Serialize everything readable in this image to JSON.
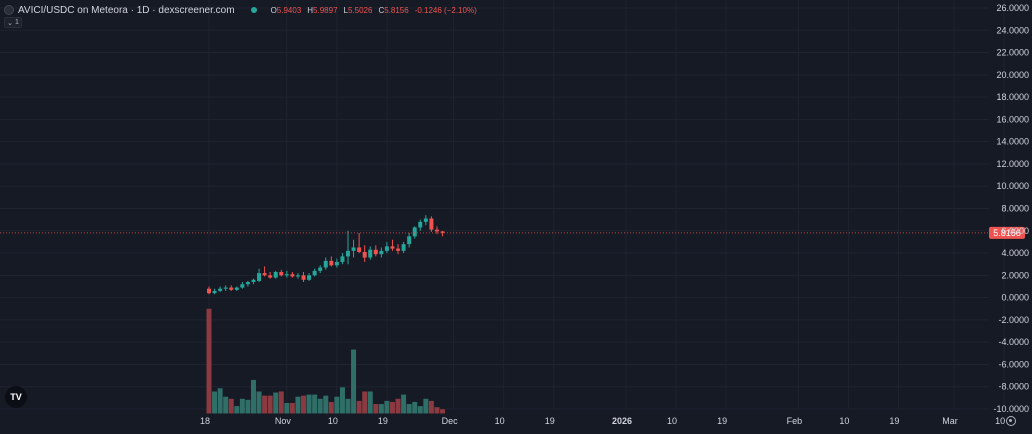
{
  "header": {
    "title": "AVICI/USDC on Meteora · 1D · dexscreener.com",
    "ohlc": [
      {
        "key": "O",
        "value": "5.9403"
      },
      {
        "key": "H",
        "value": "5.9897"
      },
      {
        "key": "L",
        "value": "5.5026"
      },
      {
        "key": "C",
        "value": "5.8156"
      },
      {
        "key": "",
        "value": "-0.1246 (−2.10%)"
      }
    ],
    "collapse_count": "1"
  },
  "icons": {
    "symbol": "token-icon",
    "status": "status-dot-icon",
    "collapse": "chevron-down-icon",
    "logo": "tradingview-logo-icon",
    "settings": "gear-icon"
  },
  "colors": {
    "background": "#161a25",
    "grid": "#1f232e",
    "up": "#26a69a",
    "down": "#ef5350",
    "volume_up": "#2f6f67",
    "volume_down": "#8a3a40",
    "axis_text": "#d1d4dc",
    "last_price_label": "#ef5350"
  },
  "chart_data": {
    "type": "candlestick",
    "interval": "1D",
    "y_axis": {
      "min": -10,
      "max": 26,
      "ticks": [
        26,
        24,
        22,
        20,
        18,
        16,
        14,
        12,
        10,
        8,
        6,
        4,
        2,
        0,
        -2,
        -4,
        -6,
        -8,
        -10
      ],
      "tick_labels": [
        "26.0000",
        "24.0000",
        "22.0000",
        "20.0000",
        "18.0000",
        "16.0000",
        "14.0000",
        "12.0000",
        "10.0000",
        "8.0000",
        "6.0000",
        "4.0000",
        "2.0000",
        "0.0000",
        "-2.0000",
        "-4.0000",
        "-6.0000",
        "-8.0000",
        "-10.0000"
      ]
    },
    "x_axis": {
      "start_date": "2025-10-18",
      "end_date": "2026-03-12",
      "ticks": [
        {
          "date": "2025-10-18",
          "label": "18",
          "bold": false
        },
        {
          "date": "2025-11-01",
          "label": "Nov",
          "bold": false
        },
        {
          "date": "2025-11-10",
          "label": "10",
          "bold": false
        },
        {
          "date": "2025-11-19",
          "label": "19",
          "bold": false
        },
        {
          "date": "2025-12-01",
          "label": "Dec",
          "bold": false
        },
        {
          "date": "2025-12-10",
          "label": "10",
          "bold": false
        },
        {
          "date": "2025-12-19",
          "label": "19",
          "bold": false
        },
        {
          "date": "2026-01-01",
          "label": "2026",
          "bold": true
        },
        {
          "date": "2026-01-10",
          "label": "10",
          "bold": false
        },
        {
          "date": "2026-01-19",
          "label": "19",
          "bold": false
        },
        {
          "date": "2026-02-01",
          "label": "Feb",
          "bold": false
        },
        {
          "date": "2026-02-10",
          "label": "10",
          "bold": false
        },
        {
          "date": "2026-02-19",
          "label": "19",
          "bold": false
        },
        {
          "date": "2026-03-01",
          "label": "Mar",
          "bold": false
        },
        {
          "date": "2026-03-10",
          "label": "10",
          "bold": false
        }
      ]
    },
    "last_price": {
      "value": 5.8156,
      "label": "5.8156"
    },
    "grid": true,
    "candles": [
      {
        "date": "2025-10-18",
        "o": 0.8,
        "h": 1.0,
        "l": 0.3,
        "c": 0.4
      },
      {
        "date": "2025-10-19",
        "o": 0.4,
        "h": 0.8,
        "l": 0.3,
        "c": 0.6
      },
      {
        "date": "2025-10-20",
        "o": 0.6,
        "h": 1.0,
        "l": 0.5,
        "c": 0.8
      },
      {
        "date": "2025-10-21",
        "o": 0.8,
        "h": 1.1,
        "l": 0.6,
        "c": 0.9
      },
      {
        "date": "2025-10-22",
        "o": 0.9,
        "h": 1.1,
        "l": 0.6,
        "c": 0.7
      },
      {
        "date": "2025-10-23",
        "o": 0.7,
        "h": 1.0,
        "l": 0.6,
        "c": 0.9
      },
      {
        "date": "2025-10-24",
        "o": 0.9,
        "h": 1.4,
        "l": 0.8,
        "c": 1.2
      },
      {
        "date": "2025-10-25",
        "o": 1.2,
        "h": 1.5,
        "l": 1.0,
        "c": 1.4
      },
      {
        "date": "2025-10-26",
        "o": 1.4,
        "h": 1.7,
        "l": 1.2,
        "c": 1.6
      },
      {
        "date": "2025-10-27",
        "o": 1.5,
        "h": 2.6,
        "l": 1.4,
        "c": 2.2
      },
      {
        "date": "2025-10-28",
        "o": 2.2,
        "h": 2.8,
        "l": 1.9,
        "c": 2.0
      },
      {
        "date": "2025-10-29",
        "o": 2.0,
        "h": 2.3,
        "l": 1.7,
        "c": 1.8
      },
      {
        "date": "2025-10-30",
        "o": 1.8,
        "h": 2.4,
        "l": 1.7,
        "c": 2.3
      },
      {
        "date": "2025-10-31",
        "o": 2.3,
        "h": 2.5,
        "l": 1.9,
        "c": 2.0
      },
      {
        "date": "2025-11-01",
        "o": 2.0,
        "h": 2.4,
        "l": 1.8,
        "c": 2.1
      },
      {
        "date": "2025-11-02",
        "o": 2.1,
        "h": 2.3,
        "l": 1.8,
        "c": 1.9
      },
      {
        "date": "2025-11-03",
        "o": 1.9,
        "h": 2.2,
        "l": 1.7,
        "c": 2.0
      },
      {
        "date": "2025-11-04",
        "o": 2.0,
        "h": 2.3,
        "l": 1.4,
        "c": 1.6
      },
      {
        "date": "2025-11-05",
        "o": 1.6,
        "h": 2.2,
        "l": 1.5,
        "c": 2.0
      },
      {
        "date": "2025-11-06",
        "o": 2.0,
        "h": 2.6,
        "l": 1.9,
        "c": 2.4
      },
      {
        "date": "2025-11-07",
        "o": 2.4,
        "h": 2.9,
        "l": 2.2,
        "c": 2.7
      },
      {
        "date": "2025-11-08",
        "o": 2.7,
        "h": 3.6,
        "l": 2.5,
        "c": 3.3
      },
      {
        "date": "2025-11-09",
        "o": 3.3,
        "h": 3.7,
        "l": 2.8,
        "c": 2.9
      },
      {
        "date": "2025-11-10",
        "o": 2.9,
        "h": 3.5,
        "l": 2.7,
        "c": 3.2
      },
      {
        "date": "2025-11-11",
        "o": 3.2,
        "h": 4.0,
        "l": 3.0,
        "c": 3.7
      },
      {
        "date": "2025-11-12",
        "o": 3.7,
        "h": 6.0,
        "l": 3.0,
        "c": 4.2
      },
      {
        "date": "2025-11-13",
        "o": 4.2,
        "h": 5.2,
        "l": 3.6,
        "c": 4.5
      },
      {
        "date": "2025-11-14",
        "o": 4.5,
        "h": 5.8,
        "l": 4.0,
        "c": 4.1
      },
      {
        "date": "2025-11-15",
        "o": 4.1,
        "h": 4.7,
        "l": 3.2,
        "c": 3.6
      },
      {
        "date": "2025-11-16",
        "o": 3.6,
        "h": 4.6,
        "l": 3.4,
        "c": 4.3
      },
      {
        "date": "2025-11-17",
        "o": 4.3,
        "h": 4.7,
        "l": 3.7,
        "c": 3.9
      },
      {
        "date": "2025-11-18",
        "o": 3.9,
        "h": 4.5,
        "l": 3.6,
        "c": 4.2
      },
      {
        "date": "2025-11-19",
        "o": 4.2,
        "h": 5.0,
        "l": 4.0,
        "c": 4.6
      },
      {
        "date": "2025-11-20",
        "o": 4.6,
        "h": 5.2,
        "l": 4.2,
        "c": 4.4
      },
      {
        "date": "2025-11-21",
        "o": 4.4,
        "h": 4.8,
        "l": 3.9,
        "c": 4.2
      },
      {
        "date": "2025-11-22",
        "o": 4.2,
        "h": 5.0,
        "l": 4.0,
        "c": 4.8
      },
      {
        "date": "2025-11-23",
        "o": 4.8,
        "h": 5.8,
        "l": 4.5,
        "c": 5.5
      },
      {
        "date": "2025-11-24",
        "o": 5.5,
        "h": 6.4,
        "l": 5.3,
        "c": 6.3
      },
      {
        "date": "2025-11-25",
        "o": 6.3,
        "h": 7.0,
        "l": 6.0,
        "c": 6.8
      },
      {
        "date": "2025-11-26",
        "o": 6.8,
        "h": 7.4,
        "l": 6.5,
        "c": 7.1
      },
      {
        "date": "2025-11-27",
        "o": 7.1,
        "h": 7.3,
        "l": 5.9,
        "c": 6.1
      },
      {
        "date": "2025-11-28",
        "o": 6.1,
        "h": 6.4,
        "l": 5.7,
        "c": 5.94
      },
      {
        "date": "2025-11-29",
        "o": 5.9403,
        "h": 5.9897,
        "l": 5.5026,
        "c": 5.8156
      }
    ],
    "volume": {
      "axis_top_price": -1,
      "axis_bottom_price": -10.4,
      "max_value": 100,
      "values": [
        100,
        21,
        24,
        16,
        14,
        7,
        14,
        13,
        32,
        21,
        17,
        17,
        20,
        21,
        10,
        10,
        16,
        17,
        18,
        18,
        14,
        17,
        11,
        16,
        25,
        14,
        61,
        12,
        21,
        21,
        9,
        9,
        12,
        11,
        14,
        18,
        9,
        11,
        7,
        14,
        12,
        6,
        4
      ]
    }
  }
}
